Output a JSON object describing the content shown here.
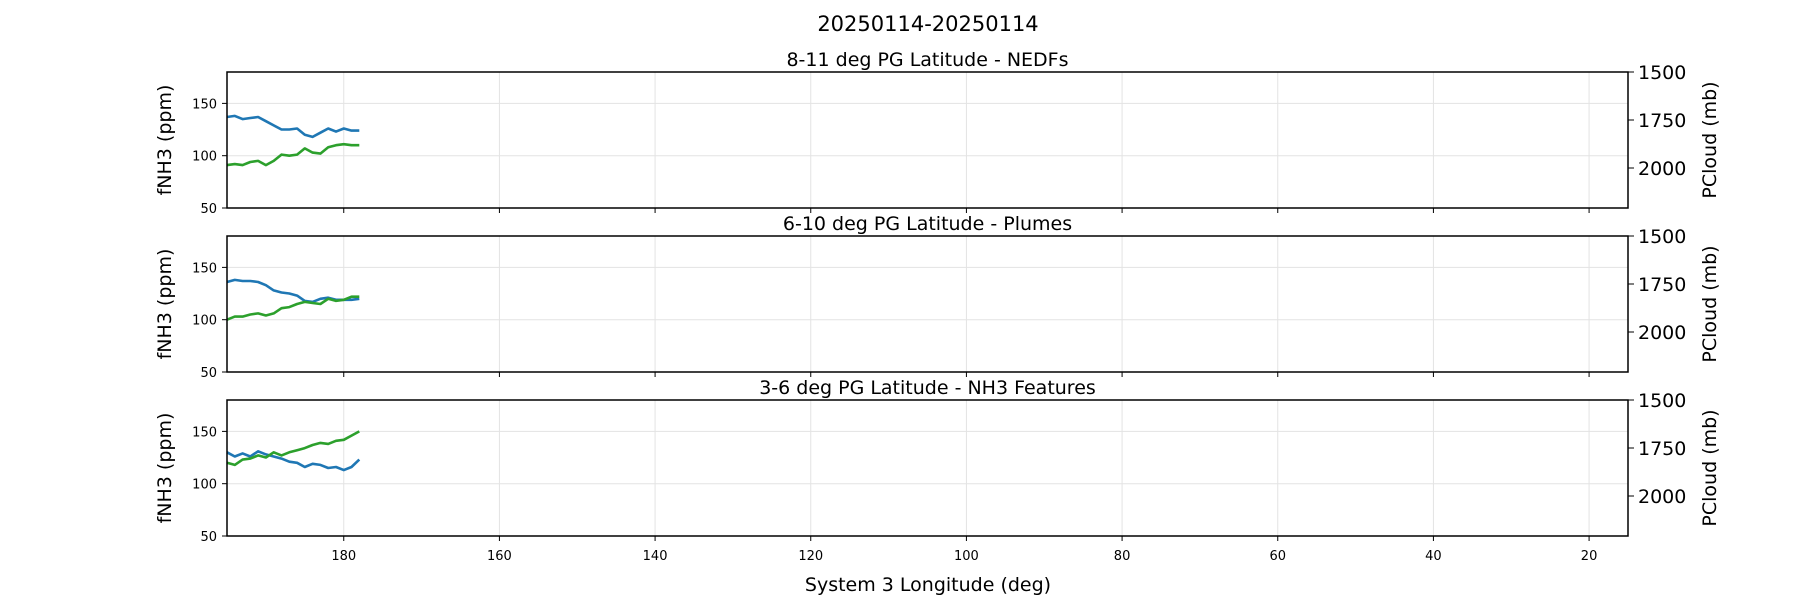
{
  "chart_data": {
    "type": "line",
    "suptitle": "20250114-20250114",
    "xlabel": "System 3 Longitude (deg)",
    "xlim": [
      195,
      15
    ],
    "x_ticks": [
      180,
      160,
      140,
      120,
      100,
      80,
      60,
      40,
      20
    ],
    "grid": true,
    "series_colors": [
      "#1f77b4",
      "#2ca02c"
    ],
    "panels": [
      {
        "title": "8-11 deg PG Latitude - NEDFs",
        "ylabel": "fNH3 (ppm)",
        "ylim": [
          50,
          180
        ],
        "y_ticks": [
          50,
          100,
          150
        ],
        "ylabel_right": "PCloud (mb)",
        "y2_ticks": [
          1500,
          1750,
          2000
        ],
        "series": [
          {
            "color": "#1f77b4",
            "x": [
              195,
              194,
              193,
              192,
              191,
              190,
              189,
              188,
              187,
              186,
              185,
              184,
              183,
              182,
              181,
              180,
              179,
              178
            ],
            "y": [
              137,
              138,
              135,
              136,
              137,
              133,
              129,
              125,
              125,
              126,
              120,
              118,
              122,
              126,
              123,
              126,
              124,
              124
            ]
          },
          {
            "color": "#2ca02c",
            "x": [
              195,
              194,
              193,
              192,
              191,
              190,
              189,
              188,
              187,
              186,
              185,
              184,
              183,
              182,
              181,
              180,
              179,
              178
            ],
            "y": [
              91,
              92,
              91,
              94,
              95,
              91,
              95,
              101,
              100,
              101,
              107,
              103,
              102,
              108,
              110,
              111,
              110,
              110
            ]
          }
        ]
      },
      {
        "title": "6-10 deg PG Latitude - Plumes",
        "ylabel": "fNH3 (ppm)",
        "ylim": [
          50,
          180
        ],
        "y_ticks": [
          50,
          100,
          150
        ],
        "ylabel_right": "PCloud (mb)",
        "y2_ticks": [
          1500,
          1750,
          2000
        ],
        "series": [
          {
            "color": "#1f77b4",
            "x": [
              195,
              194,
              193,
              192,
              191,
              190,
              189,
              188,
              187,
              186,
              185,
              184,
              183,
              182,
              181,
              180,
              179,
              178
            ],
            "y": [
              136,
              138,
              137,
              137,
              136,
              133,
              128,
              126,
              125,
              123,
              118,
              117,
              120,
              121,
              119,
              119,
              119,
              120
            ]
          },
          {
            "color": "#2ca02c",
            "x": [
              195,
              194,
              193,
              192,
              191,
              190,
              189,
              188,
              187,
              186,
              185,
              184,
              183,
              182,
              181,
              180,
              179,
              178
            ],
            "y": [
              100,
              103,
              103,
              105,
              106,
              104,
              106,
              111,
              112,
              115,
              117,
              116,
              115,
              120,
              118,
              119,
              122,
              122
            ]
          }
        ]
      },
      {
        "title": "3-6 deg PG Latitude - NH3 Features",
        "ylabel": "fNH3 (ppm)",
        "ylim": [
          50,
          180
        ],
        "y_ticks": [
          50,
          100,
          150
        ],
        "ylabel_right": "PCloud (mb)",
        "y2_ticks": [
          1500,
          1750,
          2000
        ],
        "series": [
          {
            "color": "#1f77b4",
            "x": [
              195,
              194,
              193,
              192,
              191,
              190,
              189,
              188,
              187,
              186,
              185,
              184,
              183,
              182,
              181,
              180,
              179,
              178
            ],
            "y": [
              130,
              126,
              129,
              126,
              131,
              128,
              126,
              124,
              121,
              120,
              116,
              119,
              118,
              115,
              116,
              113,
              116,
              123
            ]
          },
          {
            "color": "#2ca02c",
            "x": [
              195,
              194,
              193,
              192,
              191,
              190,
              189,
              188,
              187,
              186,
              185,
              184,
              183,
              182,
              181,
              180,
              179,
              178
            ],
            "y": [
              120,
              118,
              123,
              124,
              127,
              125,
              130,
              127,
              130,
              132,
              134,
              137,
              139,
              138,
              141,
              142,
              146,
              150
            ]
          }
        ]
      }
    ]
  }
}
